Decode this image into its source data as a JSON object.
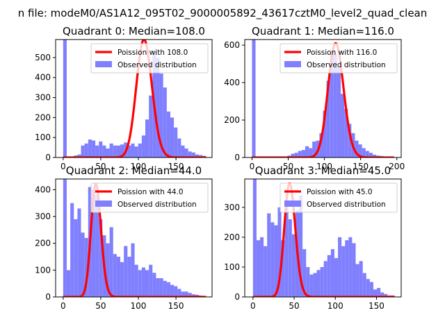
{
  "figure": {
    "suptitle": "n file: modeM0/AS1A12_095T02_9000005892_43617cztM0_level2_quad_clean"
  },
  "colors": {
    "histogram": "#8080ff",
    "poisson": "#ff0000",
    "axis": "#000000"
  },
  "chart_data": [
    {
      "type": "bar",
      "title": "Quadrant 0: Median=108.0",
      "legend": {
        "placement": "top-right",
        "entries": [
          "Poission with 108.0",
          "Observed distribution"
        ]
      },
      "xlim": [
        -10,
        198
      ],
      "ylim": [
        0,
        590
      ],
      "xticks": [
        0,
        50,
        100,
        150
      ],
      "yticks": [
        0,
        100,
        200,
        300,
        400,
        500
      ],
      "bin_width": 4.75,
      "hist_start": 0,
      "hist_values": [
        590,
        0,
        5,
        10,
        15,
        60,
        70,
        90,
        85,
        60,
        80,
        60,
        45,
        70,
        60,
        60,
        65,
        75,
        60,
        70,
        55,
        70,
        110,
        190,
        310,
        530,
        500,
        420,
        350,
        230,
        200,
        150,
        95,
        60,
        45,
        30,
        25,
        15,
        12,
        8
      ],
      "poisson_mean": 108.0,
      "poisson_peak": 590,
      "poisson_range": [
        0,
        190
      ]
    },
    {
      "type": "bar",
      "title": "Quadrant 1: Median=116.0",
      "legend": {
        "placement": "top-right",
        "entries": [
          "Poission with 116.0",
          "Observed distribution"
        ]
      },
      "xlim": [
        -10,
        206
      ],
      "ylim": [
        0,
        630
      ],
      "xticks": [
        0,
        50,
        100,
        150,
        200
      ],
      "yticks": [
        0,
        200,
        400,
        600
      ],
      "bin_width": 4.9,
      "hist_start": 0,
      "hist_values": [
        630,
        0,
        0,
        0,
        0,
        0,
        0,
        0,
        0,
        5,
        10,
        20,
        25,
        35,
        40,
        60,
        50,
        85,
        90,
        130,
        250,
        410,
        560,
        550,
        480,
        340,
        260,
        180,
        130,
        90,
        70,
        50,
        35,
        25,
        15,
        10,
        8,
        5,
        4,
        3
      ],
      "poisson_mean": 116.0,
      "poisson_peak": 610,
      "poisson_range": [
        0,
        196
      ]
    },
    {
      "type": "bar",
      "title": "Quadrant 2: Median=44.0",
      "legend": {
        "placement": "top-right",
        "entries": [
          "Poission with 44.0",
          "Observed distribution"
        ]
      },
      "xlim": [
        -10,
        198
      ],
      "ylim": [
        0,
        440
      ],
      "xticks": [
        0,
        50,
        100,
        150
      ],
      "yticks": [
        0,
        100,
        200,
        300,
        400
      ],
      "bin_width": 4.75,
      "hist_start": 0,
      "hist_values": [
        440,
        100,
        350,
        290,
        330,
        240,
        220,
        410,
        400,
        380,
        290,
        230,
        200,
        260,
        160,
        150,
        130,
        190,
        150,
        200,
        120,
        100,
        110,
        100,
        120,
        90,
        70,
        70,
        60,
        55,
        45,
        40,
        30,
        20,
        20,
        15,
        10,
        8,
        5,
        0
      ],
      "poisson_mean": 44.0,
      "poisson_peak": 420,
      "poisson_range": [
        0,
        190
      ]
    },
    {
      "type": "bar",
      "title": "Quadrant 3: Median=45.0",
      "legend": {
        "placement": "top-right",
        "entries": [
          "Poission with 45.0",
          "Observed distribution"
        ]
      },
      "xlim": [
        -10,
        180
      ],
      "ylim": [
        0,
        395
      ],
      "xticks": [
        0,
        50,
        100,
        150
      ],
      "yticks": [
        0,
        100,
        200,
        300
      ],
      "bin_width": 4.3,
      "hist_start": 0,
      "hist_values": [
        395,
        190,
        200,
        170,
        280,
        250,
        240,
        300,
        190,
        320,
        260,
        210,
        290,
        340,
        160,
        100,
        75,
        80,
        90,
        100,
        120,
        140,
        160,
        130,
        200,
        170,
        190,
        200,
        180,
        110,
        120,
        80,
        60,
        50,
        25,
        30,
        15,
        10,
        5,
        5
      ],
      "poisson_mean": 45.0,
      "poisson_peak": 380,
      "poisson_range": [
        0,
        172
      ]
    }
  ]
}
